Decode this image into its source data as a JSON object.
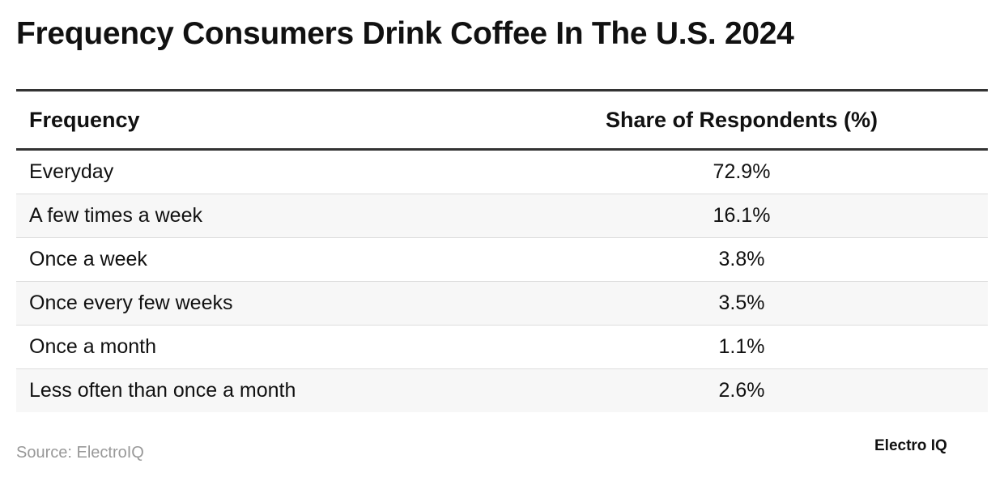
{
  "header": {
    "title": "Frequency Consumers Drink Coffee In The U.S. 2024"
  },
  "table": {
    "columns": [
      "Frequency",
      "Share of Respondents (%)"
    ],
    "rows": [
      [
        "Everyday",
        "72.9%"
      ],
      [
        "A few times a week",
        "16.1%"
      ],
      [
        "Once a week",
        "3.8%"
      ],
      [
        "Once every few weeks",
        "3.5%"
      ],
      [
        "Once a month",
        "1.1%"
      ],
      [
        "Less often than once a month",
        "2.6%"
      ]
    ]
  },
  "footer": {
    "source": "Source: ElectroIQ",
    "logo": "Electro IQ"
  }
}
